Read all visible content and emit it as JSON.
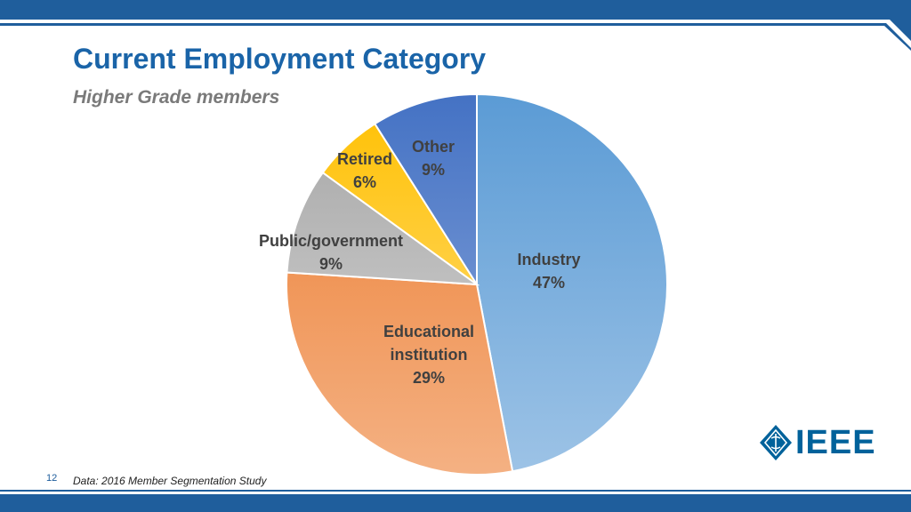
{
  "slide": {
    "title": "Current Employment Category",
    "subtitle": "Higher Grade members",
    "page_number": "12",
    "source": "Data: 2016 Member Segmentation Study",
    "logo_text": "IEEE"
  },
  "colors": {
    "frame": "#1f5e9c",
    "title": "#1a64a8",
    "subtitle": "#7a7a7a",
    "label": "#404040",
    "logo": "#00629b"
  },
  "chart_data": {
    "type": "pie",
    "title": "",
    "start_angle_deg": 0,
    "direction": "clockwise",
    "slices": [
      {
        "label_lines": [
          "Industry",
          "47%"
        ],
        "value": 47,
        "color_top": "#5b9bd5",
        "color_bottom": "#9dc3e6"
      },
      {
        "label_lines": [
          "Educational",
          "institution",
          "29%"
        ],
        "value": 29,
        "color_top": "#ed7d31",
        "color_bottom": "#f4b183"
      },
      {
        "label_lines": [
          "Public/government",
          "9%"
        ],
        "value": 9,
        "color_top": "#a5a5a5",
        "color_bottom": "#d9d9d9"
      },
      {
        "label_lines": [
          "Retired",
          "6%"
        ],
        "value": 6,
        "color_top": "#ffc000",
        "color_bottom": "#ffe08a"
      },
      {
        "label_lines": [
          "Other",
          "9%"
        ],
        "value": 9,
        "color_top": "#4472c4",
        "color_bottom": "#8faadc"
      }
    ]
  }
}
